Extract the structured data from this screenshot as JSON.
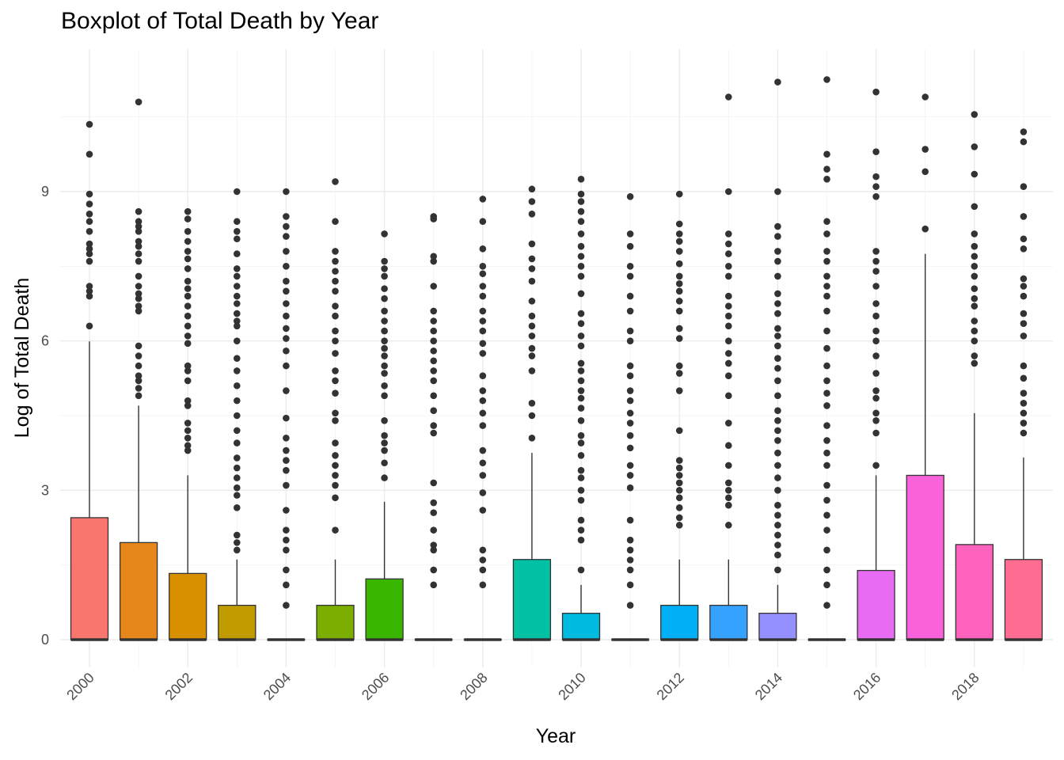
{
  "chart_data": {
    "type": "boxplot",
    "title": "Boxplot of Total Death by Year",
    "xlabel": "Year",
    "ylabel": "Log of Total Death",
    "ylim": [
      -0.45,
      11.45
    ],
    "y_ticks": [
      0,
      3,
      6,
      9
    ],
    "x_tick_labels": [
      "2000",
      "2002",
      "2004",
      "2006",
      "2008",
      "2010",
      "2012",
      "2014",
      "2016",
      "2018"
    ],
    "grid": true,
    "legend": "none",
    "categories": [
      "2000",
      "2001",
      "2002",
      "2003",
      "2004",
      "2005",
      "2006",
      "2007",
      "2008",
      "2009",
      "2010",
      "2011",
      "2012",
      "2013",
      "2014",
      "2015",
      "2016",
      "2017",
      "2018",
      "2019"
    ],
    "boxes": [
      {
        "year": "2000",
        "q1": 0,
        "median": 0,
        "q3": 2.45,
        "whisker_high": 5.99,
        "color": "#F8766D",
        "outliers": [
          10.35,
          9.75,
          8.95,
          8.75,
          8.55,
          8.4,
          8.2,
          7.95,
          7.85,
          7.75,
          7.6,
          7.1,
          7.0,
          6.9,
          6.3
        ]
      },
      {
        "year": "2001",
        "q1": 0,
        "median": 0,
        "q3": 1.95,
        "whisker_high": 4.7,
        "color": "#E7861B",
        "outliers": [
          10.8,
          8.6,
          8.4,
          8.3,
          8.2,
          8.0,
          7.9,
          7.75,
          7.6,
          7.3,
          7.1,
          6.95,
          6.85,
          6.7,
          6.6,
          5.9,
          5.7,
          5.5,
          5.3,
          5.2,
          5.05,
          4.9
        ]
      },
      {
        "year": "2002",
        "q1": 0,
        "median": 0,
        "q3": 1.33,
        "whisker_high": 3.3,
        "color": "#D89000",
        "outliers": [
          8.6,
          8.45,
          8.2,
          8.0,
          7.8,
          7.65,
          7.45,
          7.2,
          7.05,
          6.9,
          6.7,
          6.5,
          6.3,
          6.1,
          5.95,
          5.5,
          5.4,
          5.2,
          4.8,
          4.7,
          4.35,
          4.2,
          4.05,
          3.9,
          3.8
        ]
      },
      {
        "year": "2003",
        "q1": 0,
        "median": 0,
        "q3": 0.69,
        "whisker_high": 1.61,
        "color": "#C09B00",
        "outliers": [
          9.0,
          8.4,
          8.2,
          8.05,
          7.75,
          7.45,
          7.3,
          7.1,
          6.9,
          6.75,
          6.55,
          6.4,
          6.3,
          6.0,
          5.65,
          5.4,
          5.1,
          4.8,
          4.5,
          4.2,
          3.95,
          3.65,
          3.45,
          3.25,
          3.05,
          2.9,
          2.65,
          2.1,
          1.95,
          1.8
        ]
      },
      {
        "year": "2004",
        "q1": 0,
        "median": 0,
        "q3": 0.0,
        "whisker_high": 0.0,
        "color": "#A3A500",
        "outliers": [
          9.0,
          8.5,
          8.3,
          8.1,
          7.8,
          7.5,
          7.2,
          7.0,
          6.75,
          6.5,
          6.25,
          6.05,
          5.8,
          5.5,
          5.0,
          4.45,
          4.05,
          3.8,
          3.6,
          3.4,
          3.1,
          2.6,
          2.2,
          2.0,
          1.8,
          1.4,
          1.1,
          0.69
        ]
      },
      {
        "year": "2005",
        "q1": 0,
        "median": 0,
        "q3": 0.69,
        "whisker_high": 1.61,
        "color": "#7CAE00",
        "outliers": [
          9.2,
          8.4,
          7.8,
          7.6,
          7.4,
          7.2,
          7.0,
          6.7,
          6.5,
          6.2,
          6.0,
          5.75,
          5.4,
          5.2,
          4.95,
          4.55,
          4.4,
          3.95,
          3.7,
          3.5,
          3.3,
          3.1,
          2.85,
          2.2
        ]
      },
      {
        "year": "2006",
        "q1": 0,
        "median": 0,
        "q3": 1.22,
        "whisker_high": 2.77,
        "color": "#39B600",
        "outliers": [
          8.15,
          7.6,
          7.45,
          7.3,
          7.05,
          6.85,
          6.6,
          6.4,
          6.2,
          6.0,
          5.85,
          5.7,
          5.5,
          5.35,
          5.1,
          4.9,
          4.4,
          4.1,
          3.95,
          3.8,
          3.55,
          3.25
        ]
      },
      {
        "year": "2007",
        "q1": 0,
        "median": 0,
        "q3": 0.0,
        "whisker_high": 0.0,
        "color": "#00BB4E",
        "outliers": [
          8.5,
          8.45,
          7.7,
          7.6,
          7.1,
          6.6,
          6.4,
          6.2,
          6.0,
          5.8,
          5.6,
          5.4,
          5.2,
          4.9,
          4.6,
          4.3,
          4.15,
          3.15,
          2.75,
          2.55,
          2.2,
          1.9,
          1.8,
          1.4,
          1.1
        ]
      },
      {
        "year": "2008",
        "q1": 0,
        "median": 0,
        "q3": 0.0,
        "whisker_high": 0.0,
        "color": "#00BF7D",
        "outliers": [
          8.85,
          8.4,
          7.85,
          7.5,
          7.35,
          7.1,
          6.9,
          6.6,
          6.4,
          6.2,
          5.95,
          5.75,
          5.3,
          5.0,
          4.8,
          4.55,
          4.3,
          3.8,
          3.55,
          3.3,
          2.95,
          2.6,
          1.8,
          1.6,
          1.4,
          1.1
        ]
      },
      {
        "year": "2009",
        "q1": 0,
        "median": 0,
        "q3": 1.61,
        "whisker_high": 3.75,
        "color": "#00C1A3",
        "outliers": [
          9.05,
          8.8,
          8.55,
          7.95,
          7.65,
          7.45,
          7.2,
          6.8,
          6.5,
          6.3,
          6.1,
          5.85,
          5.7,
          5.4,
          4.75,
          4.5,
          4.05
        ]
      },
      {
        "year": "2010",
        "q1": 0,
        "median": 0,
        "q3": 0.53,
        "whisker_high": 1.1,
        "color": "#00BAE0",
        "outliers": [
          9.25,
          8.95,
          8.8,
          8.6,
          8.4,
          8.15,
          7.9,
          7.7,
          7.5,
          7.3,
          6.95,
          6.55,
          6.35,
          6.1,
          5.9,
          5.55,
          5.4,
          5.2,
          5.0,
          4.85,
          4.65,
          4.4,
          4.1,
          3.95,
          3.7,
          3.4,
          3.25,
          3.0,
          2.8,
          2.4,
          2.2,
          2.0,
          1.4
        ]
      },
      {
        "year": "2011",
        "q1": 0,
        "median": 0,
        "q3": 0.0,
        "whisker_high": 0.0,
        "color": "#00B0F6",
        "outliers": [
          8.9,
          8.15,
          7.9,
          7.5,
          7.3,
          6.9,
          6.6,
          6.2,
          6.0,
          5.5,
          5.3,
          5.0,
          4.8,
          4.55,
          4.35,
          4.1,
          3.85,
          3.5,
          3.3,
          3.05,
          2.4,
          2.0,
          1.8,
          1.6,
          1.4,
          1.1,
          0.69
        ]
      },
      {
        "year": "2012",
        "q1": 0,
        "median": 0,
        "q3": 0.69,
        "whisker_high": 1.61,
        "color": "#00B0F6",
        "outliers": [
          8.95,
          8.35,
          8.15,
          8.0,
          7.8,
          7.55,
          7.3,
          7.15,
          7.0,
          6.8,
          6.6,
          6.25,
          6.05,
          5.5,
          5.35,
          5.0,
          4.2,
          3.6,
          3.45,
          3.3,
          3.15,
          3.0,
          2.85,
          2.65,
          2.45,
          2.3
        ]
      },
      {
        "year": "2013",
        "q1": 0,
        "median": 0,
        "q3": 0.69,
        "whisker_high": 1.61,
        "color": "#35A2FF",
        "outliers": [
          10.9,
          9.0,
          8.15,
          7.95,
          7.75,
          7.5,
          7.3,
          6.9,
          6.7,
          6.5,
          6.3,
          6.0,
          5.75,
          5.55,
          5.3,
          4.9,
          4.35,
          3.9,
          3.5,
          3.15,
          3.0,
          2.85,
          2.7,
          2.3
        ]
      },
      {
        "year": "2014",
        "q1": 0,
        "median": 0,
        "q3": 0.53,
        "whisker_high": 1.1,
        "color": "#9590FF",
        "outliers": [
          11.2,
          9.0,
          8.3,
          8.1,
          7.8,
          7.6,
          7.3,
          6.95,
          6.75,
          6.55,
          6.25,
          6.1,
          5.9,
          5.65,
          5.45,
          5.2,
          4.9,
          4.6,
          4.4,
          4.2,
          4.0,
          3.75,
          3.5,
          3.25,
          3.0,
          2.7,
          2.5,
          2.3,
          2.1,
          1.9,
          1.7,
          1.4
        ]
      },
      {
        "year": "2015",
        "q1": 0,
        "median": 0,
        "q3": 0.0,
        "whisker_high": 0.0,
        "color": "#C77CFF",
        "outliers": [
          11.25,
          9.75,
          9.45,
          9.25,
          8.4,
          8.15,
          7.8,
          7.6,
          7.3,
          7.1,
          6.9,
          6.6,
          6.2,
          5.85,
          5.5,
          5.2,
          4.95,
          4.7,
          4.3,
          4.0,
          3.75,
          3.5,
          3.1,
          2.8,
          2.5,
          2.2,
          1.8,
          1.4,
          1.1,
          0.69
        ]
      },
      {
        "year": "2016",
        "q1": 0,
        "median": 0,
        "q3": 1.39,
        "whisker_high": 3.3,
        "color": "#E76BF3",
        "outliers": [
          11.0,
          9.8,
          9.3,
          9.1,
          8.9,
          7.8,
          7.6,
          7.4,
          7.1,
          6.75,
          6.5,
          6.2,
          6.0,
          5.7,
          5.35,
          5.0,
          4.85,
          4.55,
          4.4,
          4.15,
          3.5
        ]
      },
      {
        "year": "2017",
        "q1": 0,
        "median": 0,
        "q3": 3.3,
        "whisker_high": 7.75,
        "color": "#FA62DB",
        "outliers": [
          10.9,
          9.85,
          9.4,
          8.25
        ]
      },
      {
        "year": "2018",
        "q1": 0,
        "median": 0,
        "q3": 1.91,
        "whisker_high": 4.55,
        "color": "#FF62BC",
        "outliers": [
          10.55,
          9.9,
          9.35,
          8.7,
          8.15,
          7.9,
          7.7,
          7.5,
          7.3,
          7.05,
          6.85,
          6.7,
          6.4,
          6.2,
          6.0,
          5.7,
          5.55
        ]
      },
      {
        "year": "2019",
        "q1": 0,
        "median": 0,
        "q3": 1.61,
        "whisker_high": 3.66,
        "color": "#FF6C91",
        "outliers": [
          10.2,
          10.0,
          9.1,
          8.5,
          8.05,
          7.85,
          7.25,
          7.1,
          6.9,
          6.55,
          6.35,
          6.1,
          5.5,
          5.25,
          4.95,
          4.75,
          4.55,
          4.35,
          4.15
        ]
      }
    ]
  }
}
